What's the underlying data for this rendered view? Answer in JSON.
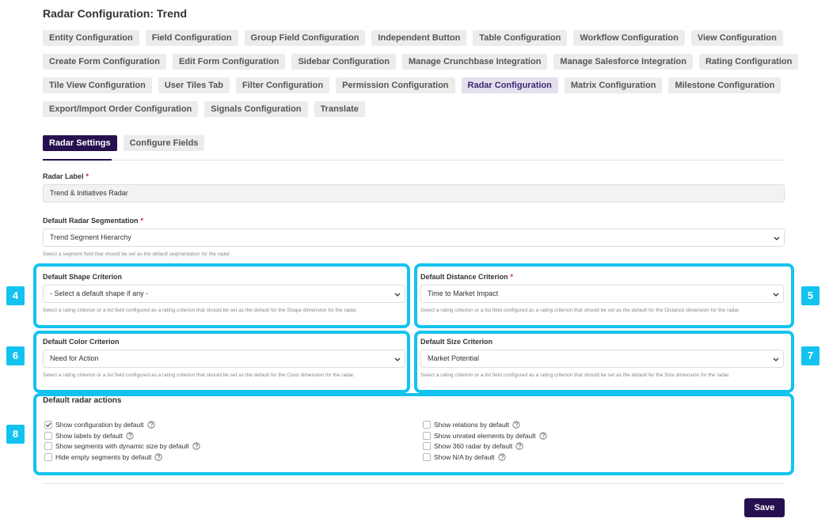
{
  "header": {
    "title": "Radar Configuration: Trend"
  },
  "tab_rows": [
    [
      {
        "label": "Entity Configuration",
        "active": false
      },
      {
        "label": "Field Configuration",
        "active": false
      },
      {
        "label": "Group Field Configuration",
        "active": false
      },
      {
        "label": "Independent Button",
        "active": false
      },
      {
        "label": "Table Configuration",
        "active": false
      },
      {
        "label": "Workflow Configuration",
        "active": false
      },
      {
        "label": "View Configuration",
        "active": false
      }
    ],
    [
      {
        "label": "Create Form Configuration",
        "active": false
      },
      {
        "label": "Edit Form Configuration",
        "active": false
      },
      {
        "label": "Sidebar Configuration",
        "active": false
      },
      {
        "label": "Manage Crunchbase Integration",
        "active": false
      },
      {
        "label": "Manage Salesforce Integration",
        "active": false
      },
      {
        "label": "Rating Configuration",
        "active": false
      }
    ],
    [
      {
        "label": "Tile View Configuration",
        "active": false
      },
      {
        "label": "User Tiles Tab",
        "active": false
      },
      {
        "label": "Filter Configuration",
        "active": false
      },
      {
        "label": "Permission Configuration",
        "active": false
      },
      {
        "label": "Radar Configuration",
        "active": true
      },
      {
        "label": "Matrix Configuration",
        "active": false
      },
      {
        "label": "Milestone Configuration",
        "active": false
      }
    ],
    [
      {
        "label": "Export/Import Order Configuration",
        "active": false
      },
      {
        "label": "Signals Configuration",
        "active": false
      },
      {
        "label": "Translate",
        "active": false
      }
    ]
  ],
  "sub_tabs": [
    {
      "label": "Radar Settings",
      "active": true
    },
    {
      "label": "Configure Fields",
      "active": false
    }
  ],
  "required_mark": "*",
  "form": {
    "radar_label": {
      "label": "Radar Label",
      "required": true,
      "value": "Trend & Initiatives Radar"
    },
    "segmentation": {
      "label": "Default Radar Segmentation",
      "required": true,
      "value": "Trend Segment Hierarchy",
      "help": "Select a segment field that should be set as the default segmentation for the radar."
    },
    "criteria": [
      {
        "callout": "4",
        "label": "Default Shape Criterion",
        "required": false,
        "value": "- Select a default shape if any -",
        "help": "Select a rating criterion or a list field configured as a rating criterion that should be set as the default for the Shape dimension for the radar."
      },
      {
        "callout": "5",
        "label": "Default Distance Criterion",
        "required": true,
        "value": "Time to Market Impact",
        "help": "Select a rating criterion or a list field configured as a rating criterion that should be set as the default for the Distance dimension for the radar."
      },
      {
        "callout": "6",
        "label": "Default Color Criterion",
        "required": false,
        "value": "Need for Action",
        "help": "Select a rating criterion or a list field configured as a rating criterion that should be set as the default for the Color dimension for the radar."
      },
      {
        "callout": "7",
        "label": "Default Size Criterion",
        "required": false,
        "value": "Market Potential",
        "help": "Select a rating criterion or a list field configured as a rating criterion that should be set as the default for the Size dimension for the radar."
      }
    ]
  },
  "actions": {
    "callout": "8",
    "title": "Default radar actions",
    "items": [
      {
        "label": "Show configuration by default",
        "checked": true
      },
      {
        "label": "Show labels by default",
        "checked": false
      },
      {
        "label": "Show segments with dynamic size by default",
        "checked": false
      },
      {
        "label": "Hide empty segments by default",
        "checked": false
      },
      {
        "label": "Show relations by default",
        "checked": false
      },
      {
        "label": "Show unrated elements by default",
        "checked": false
      },
      {
        "label": "Show 360 radar by default",
        "checked": false
      },
      {
        "label": "Show N/A by default",
        "checked": false
      }
    ]
  },
  "save": "Save"
}
